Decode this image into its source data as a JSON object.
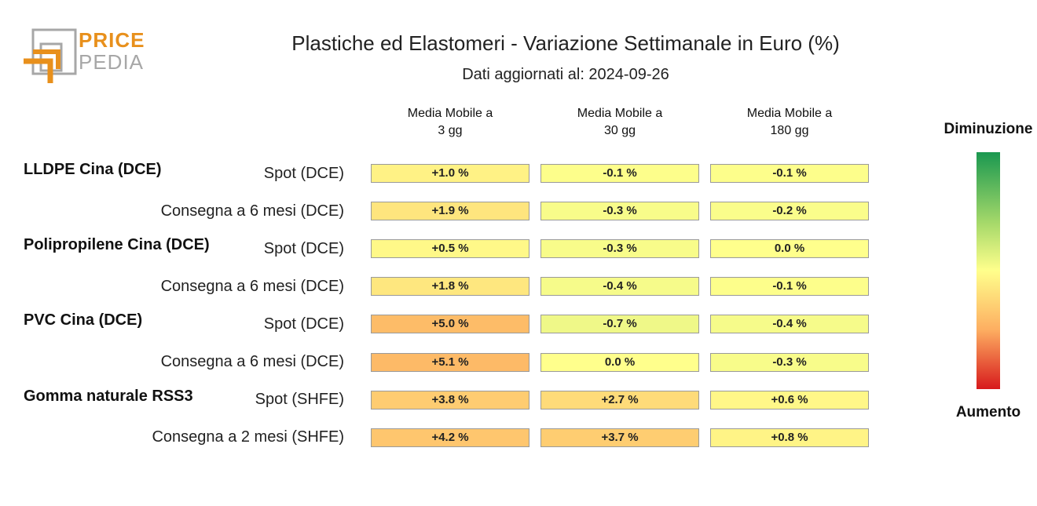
{
  "logo": {
    "line1": "PRICE",
    "line2": "PEDIA",
    "colors": {
      "orange": "#e8901c",
      "grey": "#a7a7a7"
    }
  },
  "title": "Plastiche ed Elastomeri - Variazione Settimanale in Euro (%)",
  "subtitle": "Dati aggiornati al: 2024-09-26",
  "legend": {
    "top": "Diminuzione",
    "bottom": "Aumento",
    "colors": {
      "decrease": "#1a9850",
      "neutral": "#ffff8c",
      "increase": "#d7191c"
    }
  },
  "chart_data": {
    "type": "table",
    "columns": [
      "Media Mobile a\n3 gg",
      "Media Mobile a\n30 gg",
      "Media Mobile a\n180 gg"
    ],
    "groups": [
      {
        "name": "LLDPE Cina (DCE)",
        "rows": [
          {
            "label": "Spot (DCE)",
            "values": [
              1.0,
              -0.1,
              -0.1
            ],
            "display": [
              "+1.0 %",
              "-0.1 %",
              "-0.1 %"
            ]
          },
          {
            "label": "Consegna a 6 mesi (DCE)",
            "values": [
              1.9,
              -0.3,
              -0.2
            ],
            "display": [
              "+1.9 %",
              "-0.3 %",
              "-0.2 %"
            ]
          }
        ]
      },
      {
        "name": "Polipropilene Cina (DCE)",
        "rows": [
          {
            "label": "Spot (DCE)",
            "values": [
              0.5,
              -0.3,
              0.0
            ],
            "display": [
              "+0.5 %",
              "-0.3 %",
              "0.0 %"
            ]
          },
          {
            "label": "Consegna a 6 mesi (DCE)",
            "values": [
              1.8,
              -0.4,
              -0.1
            ],
            "display": [
              "+1.8 %",
              "-0.4 %",
              "-0.1 %"
            ]
          }
        ]
      },
      {
        "name": "PVC Cina (DCE)",
        "rows": [
          {
            "label": "Spot (DCE)",
            "values": [
              5.0,
              -0.7,
              -0.4
            ],
            "display": [
              "+5.0 %",
              "-0.7 %",
              "-0.4 %"
            ]
          },
          {
            "label": "Consegna a 6 mesi (DCE)",
            "values": [
              5.1,
              0.0,
              -0.3
            ],
            "display": [
              "+5.1 %",
              "0.0 %",
              "-0.3 %"
            ]
          }
        ]
      },
      {
        "name": "Gomma naturale RSS3",
        "rows": [
          {
            "label": "Spot (SHFE)",
            "values": [
              3.8,
              2.7,
              0.6
            ],
            "display": [
              "+3.8 %",
              "+2.7 %",
              "+0.6 %"
            ]
          },
          {
            "label": "Consegna a 2 mesi (SHFE)",
            "values": [
              4.2,
              3.7,
              0.8
            ],
            "display": [
              "+4.2 %",
              "+3.7 %",
              "+0.8 %"
            ]
          }
        ]
      }
    ]
  }
}
